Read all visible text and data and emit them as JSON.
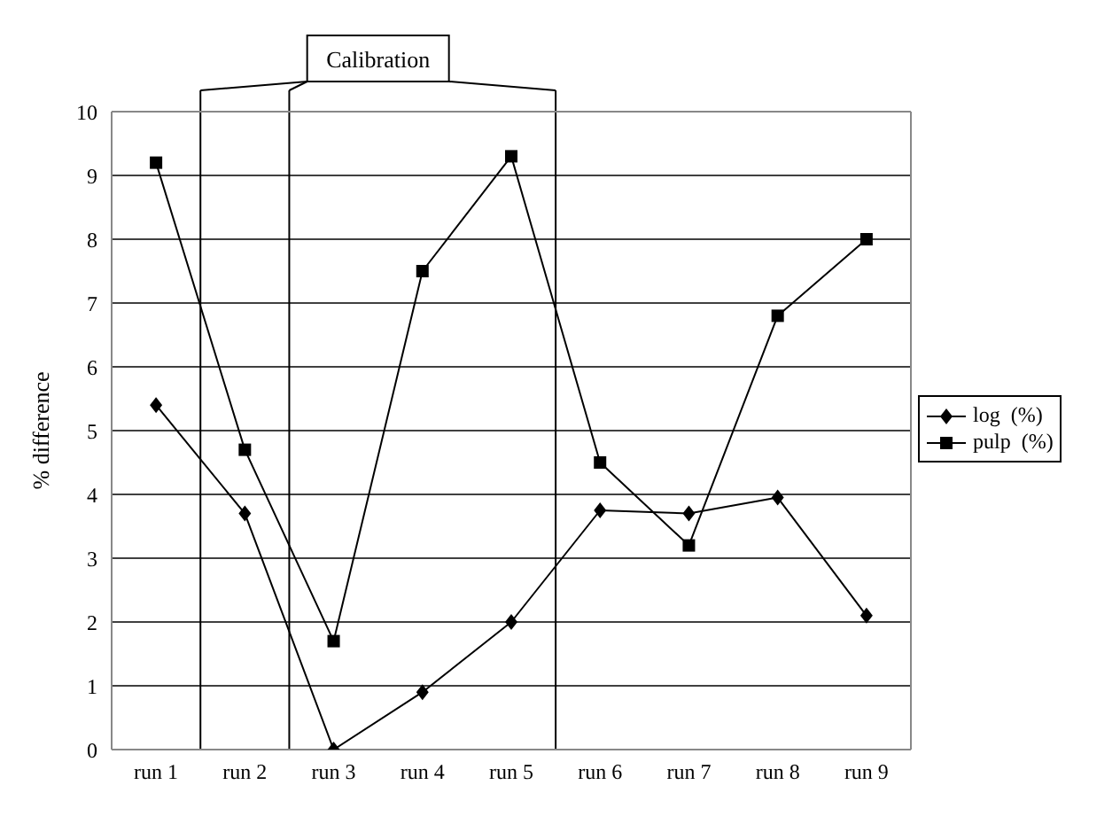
{
  "chart_data": {
    "type": "line",
    "ylabel": "% difference",
    "categories": [
      "run 1",
      "run 2",
      "run 3",
      "run 4",
      "run 5",
      "run 6",
      "run 7",
      "run 8",
      "run 9"
    ],
    "ylim": [
      0,
      10
    ],
    "yticks": [
      0,
      1,
      2,
      3,
      4,
      5,
      6,
      7,
      8,
      9,
      10
    ],
    "grid": "y",
    "legend": "right",
    "line_style": "solid",
    "series": [
      {
        "name": "log  (%)",
        "color": "#000000",
        "marker": "diamond",
        "values": [
          5.4,
          3.7,
          0,
          0.9,
          2.0,
          3.75,
          3.7,
          3.95,
          2.1
        ]
      },
      {
        "name": "pulp  (%)",
        "color": "#000000",
        "marker": "square",
        "values": [
          9.2,
          4.7,
          1.7,
          7.5,
          9.3,
          4.5,
          3.2,
          6.8,
          8.0
        ]
      }
    ],
    "annotations": [
      "Calibration"
    ]
  }
}
